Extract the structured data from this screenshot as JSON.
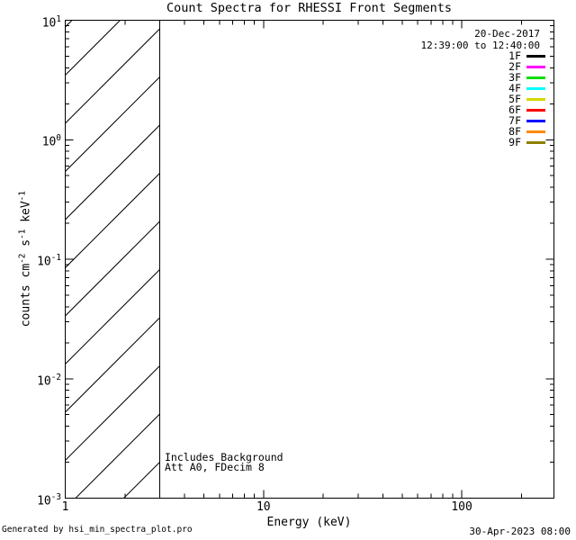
{
  "title": "Count Spectra for RHESSI Front Segments",
  "legend": {
    "date": "20-Dec-2017",
    "time_range": "12:39:00 to 12:40:00",
    "entries": [
      {
        "label": "1F",
        "color": "#000000"
      },
      {
        "label": "2F",
        "color": "#ff00ff"
      },
      {
        "label": "3F",
        "color": "#00dd00"
      },
      {
        "label": "4F",
        "color": "#00ffff"
      },
      {
        "label": "5F",
        "color": "#d8d800"
      },
      {
        "label": "6F",
        "color": "#ff0000"
      },
      {
        "label": "7F",
        "color": "#0000ff"
      },
      {
        "label": "8F",
        "color": "#ff8800"
      },
      {
        "label": "9F",
        "color": "#8c8000"
      }
    ]
  },
  "annotations": {
    "background_note": "Includes Background",
    "attenuation_note": "Att A0, FDecim 8"
  },
  "axes": {
    "xlabel": "Energy (keV)",
    "ylabel_parts": [
      {
        "t": "counts cm"
      },
      {
        "s": "-2"
      },
      {
        "t": " s"
      },
      {
        "s": "-1"
      },
      {
        "t": " keV"
      },
      {
        "s": "-1"
      }
    ]
  },
  "footer": {
    "left": "Generated by hsi_min_spectra_plot.pro",
    "right": "30-Apr-2023 08:00"
  },
  "chart_data": {
    "type": "line",
    "title": "Count Spectra for RHESSI Front Segments",
    "xlabel": "Energy (keV)",
    "ylabel": "counts cm^-2 s^-1 keV^-1",
    "x_scale": "log",
    "y_scale": "log",
    "xlim": [
      1,
      290
    ],
    "ylim": [
      0.001,
      10
    ],
    "x_ticks": [
      1,
      10,
      100
    ],
    "y_ticks": [
      10,
      1,
      0.1,
      0.01,
      0.001
    ],
    "grid": false,
    "legend_position": "top-right",
    "series": [
      {
        "name": "1F",
        "color": "#000000",
        "values": []
      },
      {
        "name": "2F",
        "color": "#ff00ff",
        "values": []
      },
      {
        "name": "3F",
        "color": "#00dd00",
        "values": []
      },
      {
        "name": "4F",
        "color": "#00ffff",
        "values": []
      },
      {
        "name": "5F",
        "color": "#d8d800",
        "values": []
      },
      {
        "name": "6F",
        "color": "#ff0000",
        "values": []
      },
      {
        "name": "7F",
        "color": "#0000ff",
        "values": []
      },
      {
        "name": "8F",
        "color": "#ff8800",
        "values": []
      },
      {
        "name": "9F",
        "color": "#8c8000",
        "values": []
      }
    ],
    "hatched_region": {
      "x_start": 1,
      "x_end": 3,
      "style": "diagonal-hatch",
      "note": "no data region below 3 keV, bounded by vertical line"
    },
    "annotations": [
      "Includes Background",
      "Att A0, FDecim 8"
    ],
    "date_stamp": "20-Dec-2017",
    "time_range": "12:39:00 to 12:40:00"
  }
}
